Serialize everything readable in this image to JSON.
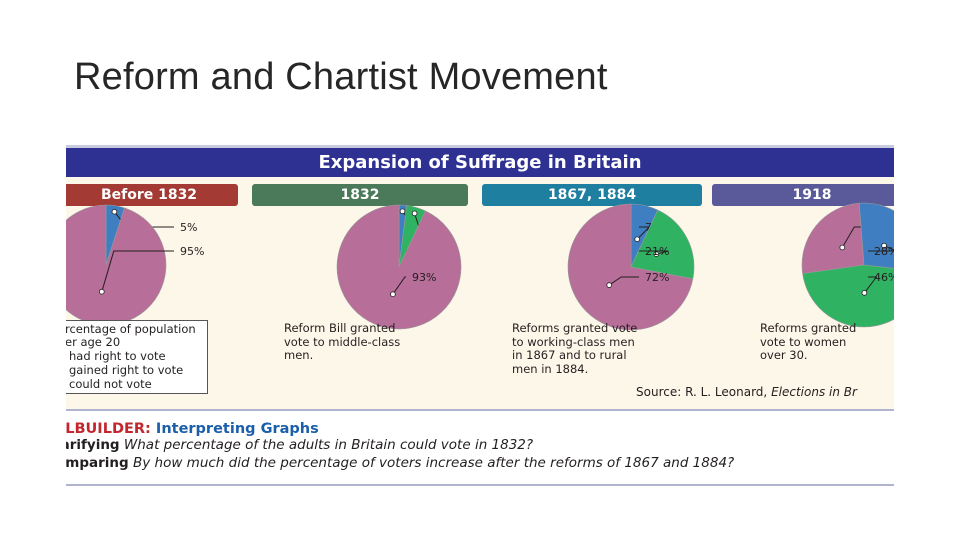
{
  "slide": {
    "title": "Reform and Chartist Movement"
  },
  "figure": {
    "header": "Expansion of Suffrage in Britain",
    "legend": {
      "lines": [
        "rcentage of population",
        "er age 20",
        "had right to vote",
        "gained right to vote",
        "could not vote"
      ]
    },
    "source": {
      "prefix": "Source: R. L. Leonard, ",
      "title": "Elections in Br"
    },
    "skillbuilder": {
      "label": "LLBUILDER:",
      "title": "Interpreting Graphs",
      "questions": [
        {
          "label": "larifying",
          "text": "What percentage of the adults in Britain could vote in 1832?"
        },
        {
          "label": "omparing",
          "text": "By how much did the percentage of voters increase after the reforms of 1867 and 1884?"
        }
      ]
    }
  },
  "colors": {
    "could_not_vote": "#b76e99",
    "had_right": "#3f7fc1",
    "gained_right": "#2fb363",
    "header_bg": "#2e3192"
  },
  "chart_data": [
    {
      "type": "pie",
      "period": "Before 1832",
      "period_color": "#a33a33",
      "slices": [
        {
          "category": "had right to vote",
          "value": 5,
          "label": "5%"
        },
        {
          "category": "could not vote",
          "value": 95,
          "label": "95%"
        }
      ],
      "description": "",
      "description_lines": []
    },
    {
      "type": "pie",
      "period": "1832",
      "period_color": "#4a7a59",
      "slices": [
        {
          "category": "had right to vote",
          "value": 2,
          "label": "2%"
        },
        {
          "category": "gained right to vote",
          "value": 5,
          "label": "5%"
        },
        {
          "category": "could not vote",
          "value": 93,
          "label": "93%"
        }
      ],
      "description_lines": [
        "Reform Bill granted",
        "vote to middle-class",
        "men."
      ]
    },
    {
      "type": "pie",
      "period": "1867, 1884",
      "period_color": "#1f7fa0",
      "slices": [
        {
          "category": "had right to vote",
          "value": 7,
          "label": "7%"
        },
        {
          "category": "gained right to vote",
          "value": 21,
          "label": "21%"
        },
        {
          "category": "could not vote",
          "value": 72,
          "label": "72%"
        }
      ],
      "description_lines": [
        "Reforms granted vote",
        "to working-class men",
        "in 1867 and to rural",
        "men in 1884."
      ]
    },
    {
      "type": "pie",
      "period": "1918",
      "period_color": "#5a5a9a",
      "slices": [
        {
          "category": "could not vote",
          "value": 26,
          "label": "26%"
        },
        {
          "category": "had right to vote",
          "value": 28,
          "label": "28%"
        },
        {
          "category": "gained right to vote",
          "value": 46,
          "label": "46%"
        }
      ],
      "description_lines": [
        "Reforms granted",
        "vote to women",
        "over 30."
      ]
    }
  ]
}
